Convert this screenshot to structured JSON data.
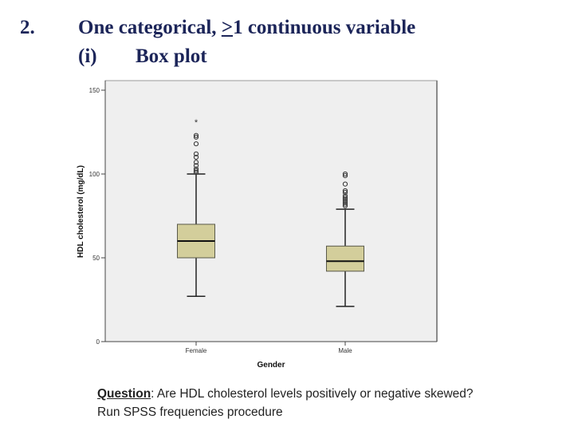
{
  "slide": {
    "number": "2.",
    "heading_pre": "One categorical, ",
    "heading_ge": ">",
    "heading_post": "1 continuous variable",
    "sub_number": "(i)",
    "sub_heading": "Box plot",
    "question_label": "Question",
    "question_text": ": Are HDL cholesterol levels positively or negative skewed?",
    "instruction": "Run SPSS frequencies procedure"
  },
  "colors": {
    "title": "#1c2559",
    "plot_background": "#efefef",
    "box_fill": "#d3ce9b",
    "box_stroke": "#5a5a4a"
  },
  "chart_data": {
    "type": "box",
    "title": "",
    "xlabel": "Gender",
    "ylabel": "HDL cholesterol (mg/dL)",
    "ylim": [
      0,
      150
    ],
    "yticks": [
      0,
      50,
      100,
      150
    ],
    "categories": [
      "Female",
      "Male"
    ],
    "series": [
      {
        "name": "Female",
        "whisker_low": 27,
        "q1": 50,
        "median": 60,
        "q3": 70,
        "whisker_high": 100,
        "outliers": [
          101,
          102,
          103,
          105,
          107,
          110,
          112,
          118,
          122,
          123
        ],
        "extremes": [
          131
        ]
      },
      {
        "name": "Male",
        "whisker_low": 21,
        "q1": 42,
        "median": 48,
        "q3": 57,
        "whisker_high": 79,
        "outliers": [
          81,
          82,
          83,
          84,
          85,
          86,
          87,
          89,
          90,
          94,
          99,
          100
        ],
        "extremes": []
      }
    ]
  }
}
